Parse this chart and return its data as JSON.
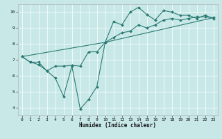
{
  "title": "",
  "xlabel": "Humidex (Indice chaleur)",
  "xlim": [
    -0.5,
    23.5
  ],
  "ylim": [
    3.5,
    10.5
  ],
  "xticks": [
    0,
    1,
    2,
    3,
    4,
    5,
    6,
    7,
    8,
    9,
    10,
    11,
    12,
    13,
    14,
    15,
    16,
    17,
    18,
    19,
    20,
    21,
    22,
    23
  ],
  "yticks": [
    4,
    5,
    6,
    7,
    8,
    9,
    10
  ],
  "bg_color": "#c8e8e8",
  "line_color": "#2a7a72",
  "line1_x": [
    0,
    1,
    2,
    3,
    4,
    5,
    6,
    7,
    8,
    9,
    10,
    11,
    12,
    13,
    14,
    15,
    16,
    17,
    18,
    19,
    20,
    21,
    22,
    23
  ],
  "line1_y": [
    7.2,
    6.85,
    6.85,
    6.3,
    5.85,
    4.7,
    6.6,
    3.9,
    4.5,
    5.3,
    8.1,
    9.4,
    9.2,
    10.0,
    10.3,
    9.85,
    9.5,
    10.1,
    10.0,
    9.8,
    9.8,
    9.6,
    9.8,
    9.6
  ],
  "line2_x": [
    0,
    1,
    2,
    3,
    4,
    5,
    6,
    7,
    8,
    9,
    10,
    11,
    12,
    13,
    14,
    15,
    16,
    17,
    18,
    19,
    20,
    21,
    22,
    23
  ],
  "line2_y": [
    7.2,
    6.85,
    6.7,
    6.3,
    6.6,
    6.6,
    6.65,
    6.6,
    7.5,
    7.5,
    8.1,
    8.4,
    8.7,
    8.8,
    9.2,
    9.0,
    9.2,
    9.5,
    9.6,
    9.5,
    9.6,
    9.7,
    9.7,
    9.65
  ],
  "line3_x": [
    0,
    10,
    23
  ],
  "line3_y": [
    7.2,
    8.1,
    9.65
  ]
}
